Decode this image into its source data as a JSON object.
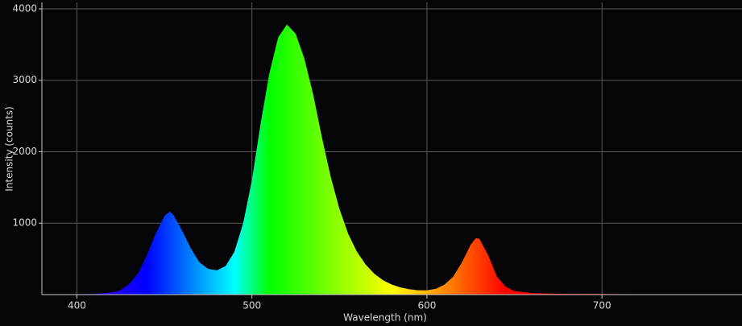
{
  "chart_data": {
    "type": "spectrum",
    "x_label": "Wavelength (nm)",
    "y_label": "Intensity (counts)",
    "x": [
      400,
      410,
      420,
      425,
      430,
      435,
      440,
      445,
      450,
      453,
      455,
      460,
      465,
      470,
      475,
      480,
      485,
      490,
      495,
      500,
      505,
      510,
      515,
      520,
      525,
      530,
      535,
      540,
      545,
      550,
      555,
      560,
      565,
      570,
      575,
      580,
      585,
      590,
      595,
      600,
      605,
      610,
      615,
      620,
      625,
      628,
      630,
      635,
      640,
      645,
      650,
      660,
      680,
      700,
      720,
      740,
      760,
      780
    ],
    "values": [
      5,
      10,
      30,
      60,
      150,
      300,
      550,
      850,
      1100,
      1160,
      1120,
      900,
      650,
      450,
      360,
      340,
      400,
      600,
      1000,
      1600,
      2400,
      3100,
      3600,
      3780,
      3650,
      3300,
      2800,
      2200,
      1650,
      1200,
      850,
      600,
      420,
      290,
      200,
      140,
      100,
      75,
      60,
      60,
      80,
      140,
      250,
      450,
      700,
      790,
      780,
      550,
      250,
      110,
      50,
      20,
      10,
      8,
      5,
      3,
      2,
      1
    ],
    "xlim": [
      380,
      780
    ],
    "ylim": [
      0,
      4090
    ],
    "xticks": [
      400,
      500,
      600,
      700
    ],
    "yticks": [
      1000,
      2000,
      3000,
      4000
    ],
    "grid": true
  }
}
